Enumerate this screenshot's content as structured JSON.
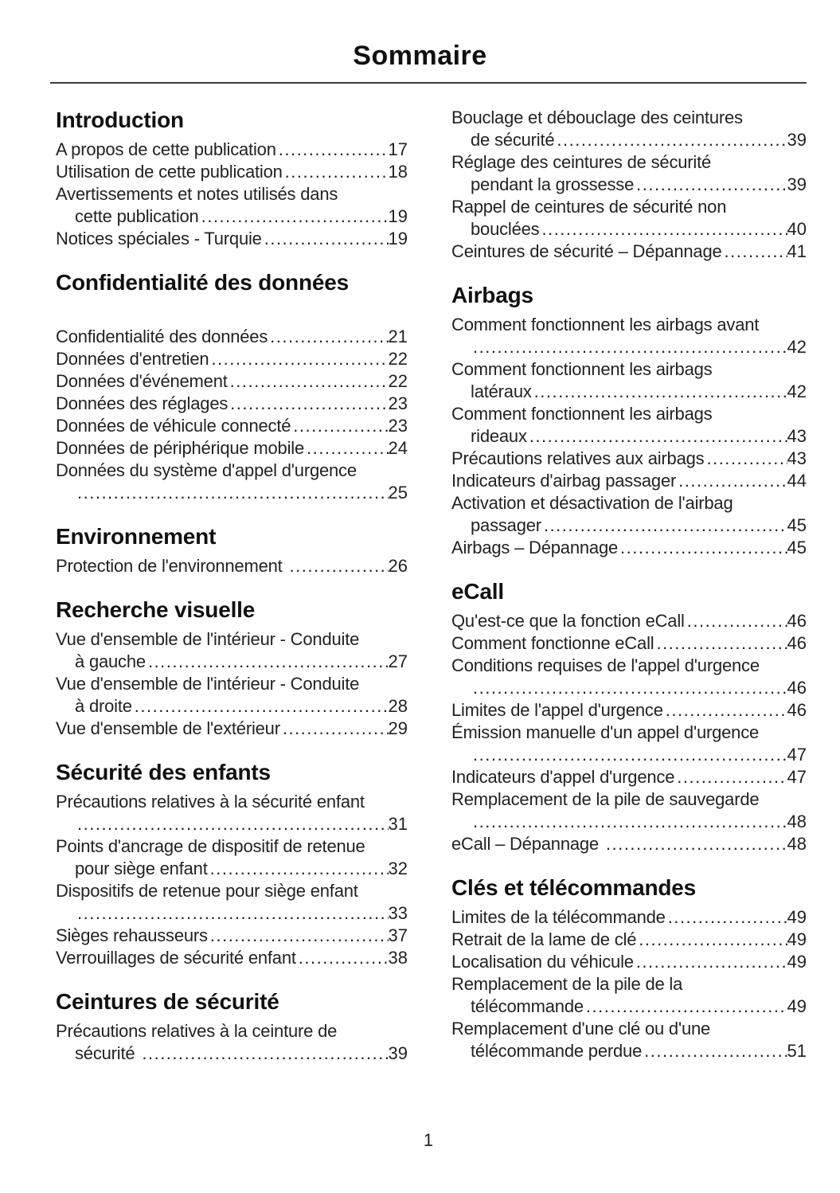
{
  "page": {
    "title": "Sommaire",
    "page_number": "1"
  },
  "columns": [
    {
      "sections": [
        {
          "heading": "Introduction",
          "entries": [
            {
              "lines": [
                "A propos de cette publication"
              ],
              "page": "17"
            },
            {
              "lines": [
                "Utilisation de cette publication"
              ],
              "page": "18"
            },
            {
              "lines": [
                "Avertissements et notes utilisés dans",
                "cette publication"
              ],
              "page": "19"
            },
            {
              "lines": [
                "Notices spéciales - Turquie"
              ],
              "page": "19"
            }
          ]
        },
        {
          "heading": "Confidentialité des données",
          "extra_gap": true,
          "entries": [
            {
              "lines": [
                "Confidentialité des données"
              ],
              "page": "21"
            },
            {
              "lines": [
                "Données d'entretien"
              ],
              "page": "22"
            },
            {
              "lines": [
                "Données d'événement"
              ],
              "page": "22"
            },
            {
              "lines": [
                "Données des réglages"
              ],
              "page": "23"
            },
            {
              "lines": [
                "Données de véhicule connecté"
              ],
              "page": "23"
            },
            {
              "lines": [
                "Données de périphérique mobile"
              ],
              "page": "24"
            },
            {
              "lines": [
                "Données du système d'appel d'urgence",
                ""
              ],
              "page": "25"
            }
          ]
        },
        {
          "heading": "Environnement",
          "entries": [
            {
              "lines": [
                "Protection de l'environnement "
              ],
              "page": "26"
            }
          ]
        },
        {
          "heading": "Recherche visuelle",
          "entries": [
            {
              "lines": [
                "Vue d'ensemble de l'intérieur - Conduite",
                "à gauche"
              ],
              "page": "27"
            },
            {
              "lines": [
                "Vue d'ensemble de l'intérieur - Conduite",
                "à droite"
              ],
              "page": "28"
            },
            {
              "lines": [
                "Vue d'ensemble de l'extérieur"
              ],
              "page": "29"
            }
          ]
        },
        {
          "heading": "Sécurité des enfants",
          "entries": [
            {
              "lines": [
                "Précautions relatives à la sécurité enfant",
                ""
              ],
              "page": "31"
            },
            {
              "lines": [
                "Points d'ancrage de dispositif de retenue",
                "pour siège enfant"
              ],
              "page": "32"
            },
            {
              "lines": [
                "Dispositifs de retenue pour siège enfant",
                ""
              ],
              "page": "33"
            },
            {
              "lines": [
                "Sièges rehausseurs"
              ],
              "page": "37"
            },
            {
              "lines": [
                "Verrouillages de sécurité enfant"
              ],
              "page": "38"
            }
          ]
        },
        {
          "heading": "Ceintures de sécurité",
          "entries": [
            {
              "lines": [
                "Précautions relatives à la ceinture de",
                "sécurité "
              ],
              "page": "39"
            }
          ]
        }
      ]
    },
    {
      "sections": [
        {
          "heading": null,
          "entries": [
            {
              "lines": [
                "Bouclage et débouclage des ceintures",
                "de sécurité"
              ],
              "page": "39"
            },
            {
              "lines": [
                "Réglage des ceintures de sécurité",
                "pendant la grossesse"
              ],
              "page": "39"
            },
            {
              "lines": [
                "Rappel de ceintures de sécurité non",
                "bouclées"
              ],
              "page": "40"
            },
            {
              "lines": [
                "Ceintures de sécurité – Dépannage"
              ],
              "page": "41"
            }
          ]
        },
        {
          "heading": "Airbags",
          "entries": [
            {
              "lines": [
                "Comment fonctionnent les airbags avant",
                ""
              ],
              "page": "42"
            },
            {
              "lines": [
                "Comment fonctionnent les airbags",
                "latéraux"
              ],
              "page": "42"
            },
            {
              "lines": [
                "Comment fonctionnent les airbags",
                "rideaux"
              ],
              "page": "43"
            },
            {
              "lines": [
                "Précautions relatives aux airbags"
              ],
              "page": "43"
            },
            {
              "lines": [
                "Indicateurs d'airbag passager"
              ],
              "page": "44"
            },
            {
              "lines": [
                "Activation et désactivation de l'airbag",
                "passager"
              ],
              "page": "45"
            },
            {
              "lines": [
                "Airbags – Dépannage"
              ],
              "page": "45"
            }
          ]
        },
        {
          "heading": "eCall",
          "entries": [
            {
              "lines": [
                "Qu'est-ce que la fonction eCall"
              ],
              "page": "46"
            },
            {
              "lines": [
                "Comment fonctionne eCall"
              ],
              "page": "46"
            },
            {
              "lines": [
                "Conditions requises de l'appel d'urgence",
                ""
              ],
              "page": "46"
            },
            {
              "lines": [
                "Limites de l'appel d'urgence"
              ],
              "page": "46"
            },
            {
              "lines": [
                "Émission manuelle d'un appel d'urgence",
                ""
              ],
              "page": "47"
            },
            {
              "lines": [
                "Indicateurs d'appel d'urgence"
              ],
              "page": "47"
            },
            {
              "lines": [
                "Remplacement de la pile de sauvegarde",
                ""
              ],
              "page": "48"
            },
            {
              "lines": [
                "eCall – Dépannage "
              ],
              "page": "48"
            }
          ]
        },
        {
          "heading": "Clés et télécommandes",
          "entries": [
            {
              "lines": [
                "Limites de la télécommande"
              ],
              "page": "49"
            },
            {
              "lines": [
                "Retrait de la lame de clé"
              ],
              "page": "49"
            },
            {
              "lines": [
                "Localisation du véhicule"
              ],
              "page": "49"
            },
            {
              "lines": [
                "Remplacement de la pile de la",
                "télécommande"
              ],
              "page": "49"
            },
            {
              "lines": [
                "Remplacement d'une clé ou d'une",
                "télécommande perdue"
              ],
              "page": "51"
            }
          ]
        }
      ]
    }
  ]
}
